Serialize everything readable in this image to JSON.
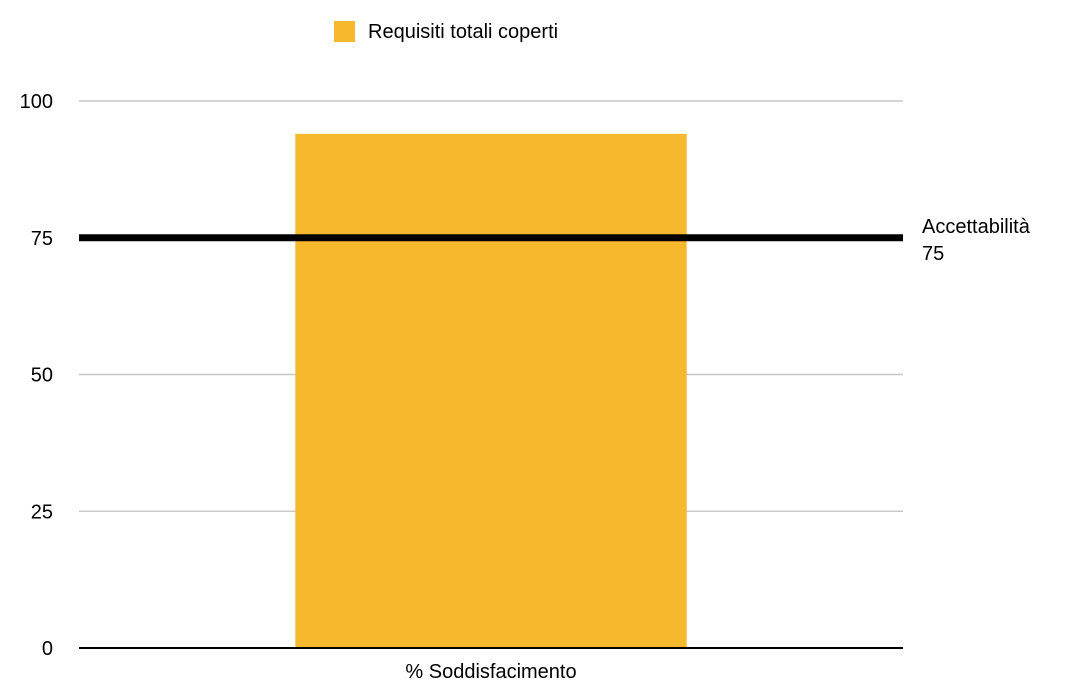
{
  "chart_data": {
    "type": "bar",
    "categories": [
      "% Soddisfacimento"
    ],
    "series": [
      {
        "name": "Requisiti totali coperti",
        "values": [
          94
        ],
        "color": "#F6B82C"
      }
    ],
    "ylim": [
      0,
      100
    ],
    "yticks": [
      0,
      25,
      50,
      75,
      100
    ],
    "ytick_labels": [
      "0",
      "25",
      "50",
      "75",
      "100"
    ],
    "grid": true,
    "legend_position": "top-center",
    "reference_line": {
      "value": 75,
      "label": "Accettabilità",
      "value_label": "75",
      "color": "#000000"
    }
  }
}
